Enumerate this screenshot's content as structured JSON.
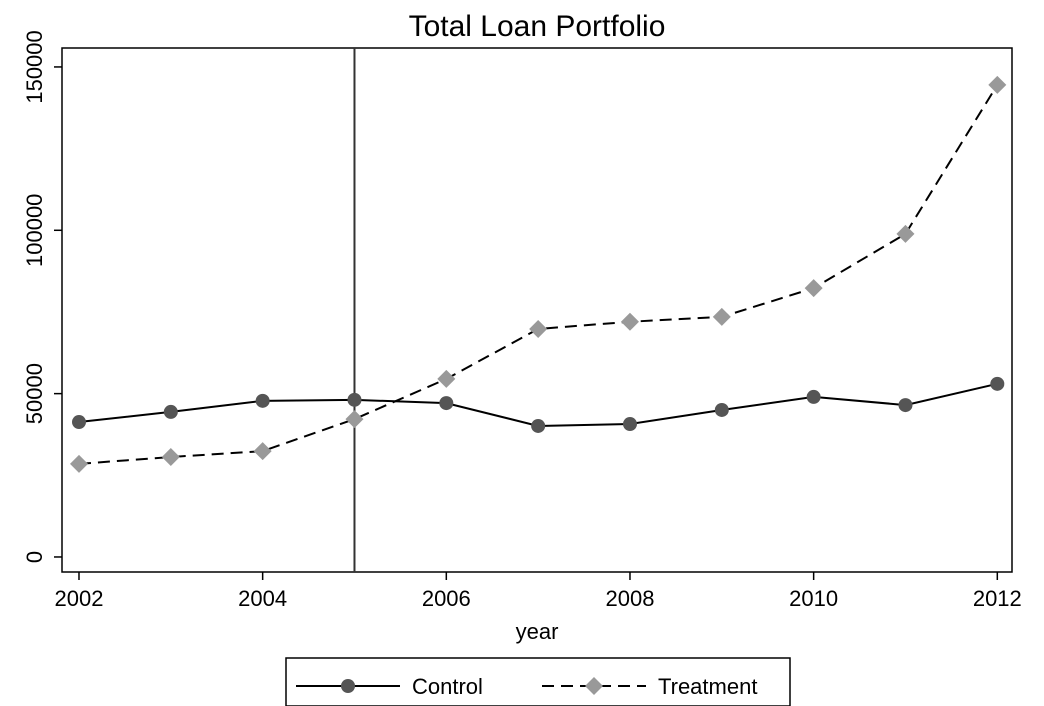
{
  "chart_data": {
    "type": "line",
    "title": "Total Loan Portfolio",
    "x_label": "year",
    "x": [
      2002,
      2003,
      2004,
      2005,
      2006,
      2007,
      2008,
      2009,
      2010,
      2011,
      2012
    ],
    "series": [
      {
        "name": "Control",
        "color": "#555555",
        "line_color": "#000000",
        "marker": "circle",
        "dash": false,
        "values": [
          41300,
          44400,
          47800,
          48100,
          47100,
          40100,
          40700,
          45000,
          49000,
          46500,
          53000
        ]
      },
      {
        "name": "Treatment",
        "color": "#999999",
        "line_color": "#000000",
        "marker": "diamond",
        "dash": true,
        "values": [
          28500,
          30600,
          32400,
          42200,
          54500,
          69800,
          72000,
          73500,
          82300,
          98900,
          144500
        ]
      }
    ],
    "vline": 2005,
    "xlim": [
      2001.815,
      2012.16
    ],
    "ylim": [
      -4600,
      155800
    ],
    "xticks": [
      2002,
      2004,
      2006,
      2008,
      2010,
      2012
    ],
    "yticks": [
      0,
      50000,
      100000,
      150000
    ],
    "grid": false,
    "legend_position": "bottom"
  }
}
